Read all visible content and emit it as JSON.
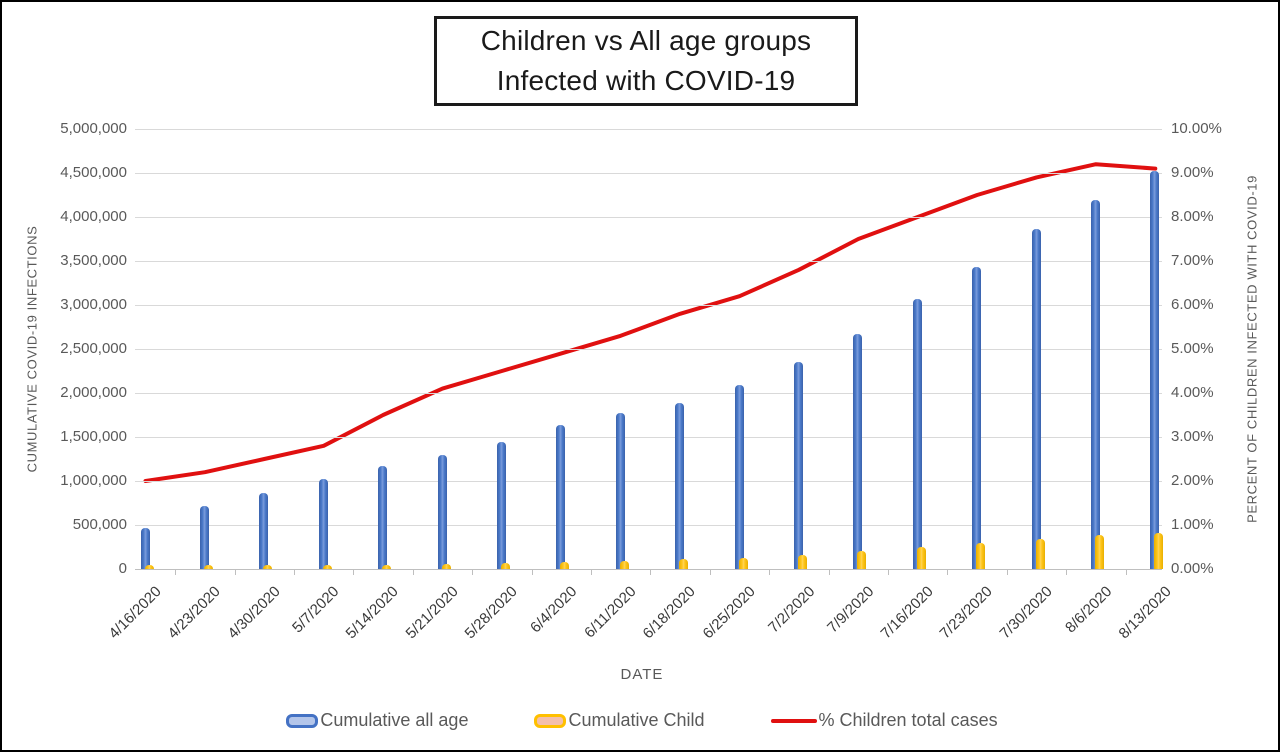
{
  "title": {
    "line1": "Children vs All age groups",
    "line2": "Infected with COVID-19"
  },
  "chart_data": {
    "type": "combo-bar-line",
    "title": "Children vs All age groups Infected with COVID-19",
    "grid": true,
    "legend_position": "bottom",
    "categories": [
      "4/16/2020",
      "4/23/2020",
      "4/30/2020",
      "5/7/2020",
      "5/14/2020",
      "5/21/2020",
      "5/28/2020",
      "6/4/2020",
      "6/11/2020",
      "6/18/2020",
      "6/25/2020",
      "7/2/2020",
      "7/9/2020",
      "7/16/2020",
      "7/23/2020",
      "7/30/2020",
      "8/6/2020",
      "8/13/2020"
    ],
    "x_axis": {
      "label": "DATE"
    },
    "left_axis": {
      "label": "CUMULATIVE COVID-19 INFECTIONS",
      "min": 0,
      "max": 5000000,
      "tick_step": 500000,
      "tick_labels": [
        "0",
        "500,000",
        "1,000,000",
        "1,500,000",
        "2,000,000",
        "2,500,000",
        "3,000,000",
        "3,500,000",
        "4,000,000",
        "4,500,000",
        "5,000,000"
      ]
    },
    "right_axis": {
      "label": "PERCENT OF CHILDREN INFECTED WITH COVID-19",
      "min": 0,
      "max": 10,
      "tick_step": 1,
      "tick_labels": [
        "0.00%",
        "1.00%",
        "2.00%",
        "3.00%",
        "4.00%",
        "5.00%",
        "6.00%",
        "7.00%",
        "8.00%",
        "9.00%",
        "10.00%"
      ]
    },
    "series": [
      {
        "name": "Cumulative all age",
        "type": "bar",
        "axis": "left",
        "color": "#4472C4",
        "values": [
          470000,
          720000,
          860000,
          1020000,
          1170000,
          1300000,
          1440000,
          1640000,
          1770000,
          1890000,
          2090000,
          2350000,
          2670000,
          3070000,
          3430000,
          3860000,
          4190000,
          4520000
        ]
      },
      {
        "name": "Cumulative Child",
        "type": "bar",
        "axis": "left",
        "color": "#FFC000",
        "values": [
          10000,
          16000,
          22000,
          29000,
          41000,
          53000,
          65000,
          80000,
          94000,
          110000,
          130000,
          160000,
          200000,
          246000,
          292000,
          344000,
          385000,
          411000
        ]
      },
      {
        "name": "% Children total cases",
        "type": "line",
        "axis": "right",
        "color": "#E01010",
        "values": [
          2.0,
          2.2,
          2.5,
          2.8,
          3.5,
          4.1,
          4.5,
          4.9,
          5.3,
          5.8,
          6.2,
          6.8,
          7.5,
          8.0,
          8.5,
          8.9,
          9.2,
          9.1
        ]
      }
    ]
  },
  "colors": {
    "bar_all": "#4472C4",
    "bar_child": "#FFC000",
    "line_pct": "#E01010",
    "gridline": "#D9D9D9",
    "axis_line": "#BFBFBF",
    "tick_text": "#595959",
    "title_text": "#1A1A1A",
    "border": "#000000"
  }
}
